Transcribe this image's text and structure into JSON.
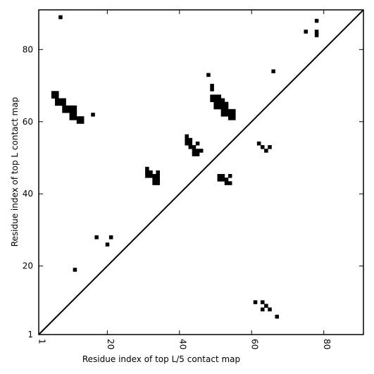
{
  "chart_data": {
    "type": "scatter",
    "xlabel": "Residue index of top L/5 contact map",
    "ylabel": "Residue index of top L contact map",
    "xlim": [
      1,
      91
    ],
    "ylim": [
      1,
      91
    ],
    "x_ticks": [
      1,
      20,
      40,
      60,
      80
    ],
    "y_ticks": [
      1,
      20,
      40,
      60,
      80
    ],
    "grid": false,
    "diagonal_line": true,
    "marker": "square",
    "marker_color": "#000000",
    "series": [
      {
        "points": [
          [
            62,
            54
          ],
          [
            63,
            53
          ],
          [
            64,
            52
          ],
          [
            65,
            53
          ],
          [
            66,
            74
          ],
          [
            75,
            85
          ],
          [
            78,
            88
          ],
          [
            78,
            85
          ],
          [
            78,
            84
          ],
          [
            61,
            10
          ],
          [
            63,
            10
          ],
          [
            63,
            8
          ],
          [
            64,
            9
          ],
          [
            65,
            8
          ],
          [
            67,
            6
          ]
        ]
      },
      {
        "points": [
          [
            7,
            89
          ],
          [
            16,
            62
          ],
          [
            5,
            68
          ],
          [
            6,
            68
          ],
          [
            5,
            67
          ],
          [
            6,
            67
          ],
          [
            6,
            66
          ],
          [
            7,
            66
          ],
          [
            8,
            66
          ],
          [
            6,
            65
          ],
          [
            7,
            65
          ],
          [
            8,
            65
          ],
          [
            8,
            64
          ],
          [
            9,
            64
          ],
          [
            10,
            64
          ],
          [
            11,
            64
          ],
          [
            8,
            63
          ],
          [
            9,
            63
          ],
          [
            10,
            63
          ],
          [
            11,
            63
          ],
          [
            10,
            62
          ],
          [
            11,
            62
          ],
          [
            10,
            61
          ],
          [
            11,
            61
          ],
          [
            12,
            61
          ],
          [
            13,
            61
          ],
          [
            12,
            60
          ],
          [
            13,
            60
          ],
          [
            17,
            28
          ],
          [
            21,
            28
          ],
          [
            20,
            26
          ],
          [
            11,
            19
          ],
          [
            31,
            47
          ],
          [
            31,
            46
          ],
          [
            32,
            46
          ],
          [
            34,
            46
          ],
          [
            31,
            45
          ],
          [
            32,
            45
          ],
          [
            33,
            45
          ],
          [
            34,
            45
          ],
          [
            33,
            44
          ],
          [
            34,
            44
          ],
          [
            33,
            43
          ],
          [
            34,
            43
          ],
          [
            42,
            56
          ],
          [
            42,
            55
          ],
          [
            43,
            55
          ],
          [
            42,
            54
          ],
          [
            43,
            54
          ],
          [
            45,
            54
          ],
          [
            43,
            53
          ],
          [
            44,
            53
          ],
          [
            44,
            52
          ],
          [
            45,
            52
          ],
          [
            46,
            52
          ],
          [
            44,
            51
          ],
          [
            45,
            51
          ],
          [
            48,
            73
          ],
          [
            49,
            70
          ],
          [
            49,
            69
          ],
          [
            49,
            67
          ],
          [
            50,
            67
          ],
          [
            51,
            67
          ],
          [
            49,
            66
          ],
          [
            50,
            66
          ],
          [
            51,
            66
          ],
          [
            52,
            66
          ],
          [
            50,
            65
          ],
          [
            51,
            65
          ],
          [
            52,
            65
          ],
          [
            53,
            65
          ],
          [
            50,
            64
          ],
          [
            51,
            64
          ],
          [
            52,
            64
          ],
          [
            53,
            64
          ],
          [
            52,
            63
          ],
          [
            53,
            63
          ],
          [
            54,
            63
          ],
          [
            55,
            63
          ],
          [
            52,
            62
          ],
          [
            53,
            62
          ],
          [
            54,
            62
          ],
          [
            55,
            62
          ],
          [
            54,
            61
          ],
          [
            55,
            61
          ],
          [
            51,
            45
          ],
          [
            52,
            45
          ],
          [
            54,
            45
          ],
          [
            51,
            44
          ],
          [
            52,
            44
          ],
          [
            53,
            44
          ],
          [
            53,
            43
          ],
          [
            54,
            43
          ]
        ]
      }
    ]
  }
}
